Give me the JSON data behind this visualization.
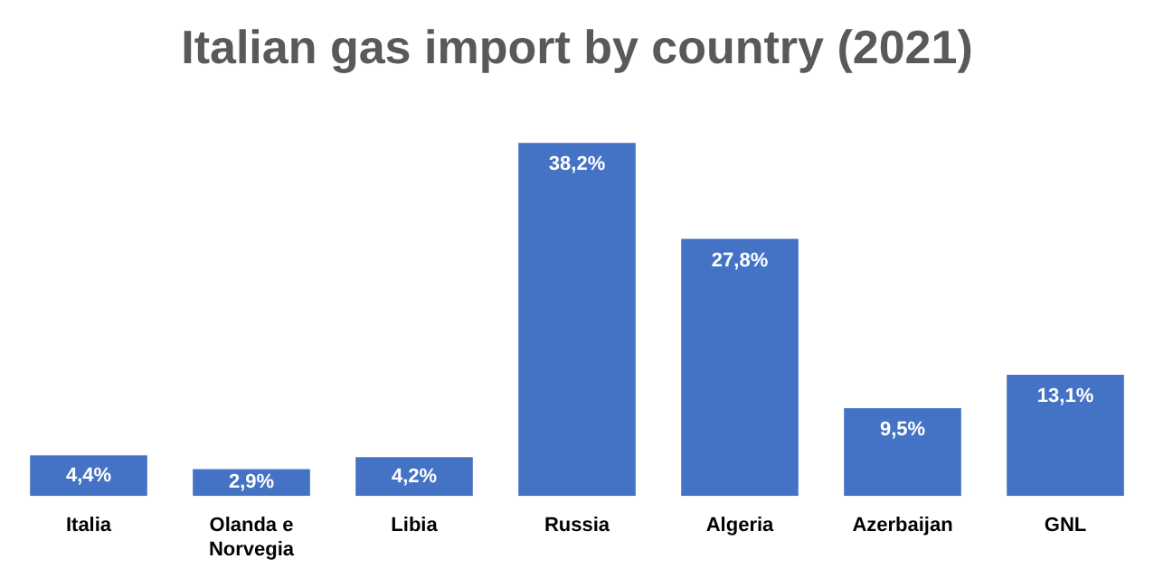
{
  "chart_data": {
    "type": "bar",
    "title": "Italian gas import by country (2021)",
    "categories": [
      "Italia",
      "Olanda e Norvegia",
      "Libia",
      "Russia",
      "Algeria",
      "Azerbaijan",
      "GNL"
    ],
    "values": [
      4.4,
      2.9,
      4.2,
      38.2,
      27.8,
      9.5,
      13.1
    ],
    "value_labels": [
      "4,4%",
      "2,9%",
      "4,2%",
      "38,2%",
      "27,8%",
      "9,5%",
      "13,1%"
    ],
    "color": "#4472c4",
    "grid": false,
    "legend": false,
    "tick_labels": "x"
  }
}
